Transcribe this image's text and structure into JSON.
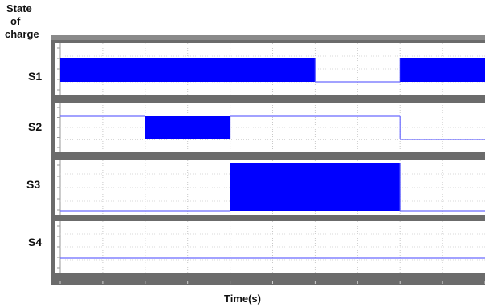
{
  "y_title_lines": [
    "State",
    "of",
    "charge"
  ],
  "chart_data": {
    "type": "line",
    "x_axis_label": "Time(s)",
    "grid": true,
    "x_range": [
      0,
      1
    ],
    "y_range": [
      0,
      1
    ],
    "series": [
      {
        "name": "S1",
        "color": "#0000ff",
        "segments": [
          {
            "x_start": 0.0,
            "x_end": 0.6,
            "state": "high-frequency switching"
          },
          {
            "x_start": 0.6,
            "x_end": 0.8,
            "state": "low"
          },
          {
            "x_start": 0.8,
            "x_end": 1.0,
            "state": "high-frequency switching"
          }
        ]
      },
      {
        "name": "S2",
        "color": "#0000ff",
        "segments": [
          {
            "x_start": 0.0,
            "x_end": 0.2,
            "state": "high"
          },
          {
            "x_start": 0.2,
            "x_end": 0.4,
            "state": "high-frequency switching"
          },
          {
            "x_start": 0.4,
            "x_end": 0.8,
            "state": "high"
          },
          {
            "x_start": 0.8,
            "x_end": 1.0,
            "state": "low"
          }
        ]
      },
      {
        "name": "S3",
        "color": "#0000ff",
        "segments": [
          {
            "x_start": 0.0,
            "x_end": 0.4,
            "state": "low"
          },
          {
            "x_start": 0.4,
            "x_end": 0.8,
            "state": "high-frequency switching"
          },
          {
            "x_start": 0.8,
            "x_end": 1.0,
            "state": "low"
          }
        ]
      },
      {
        "name": "S4",
        "color": "#0000ff",
        "segments": [
          {
            "x_start": 0.0,
            "x_end": 1.0,
            "state": "low"
          }
        ]
      }
    ]
  }
}
